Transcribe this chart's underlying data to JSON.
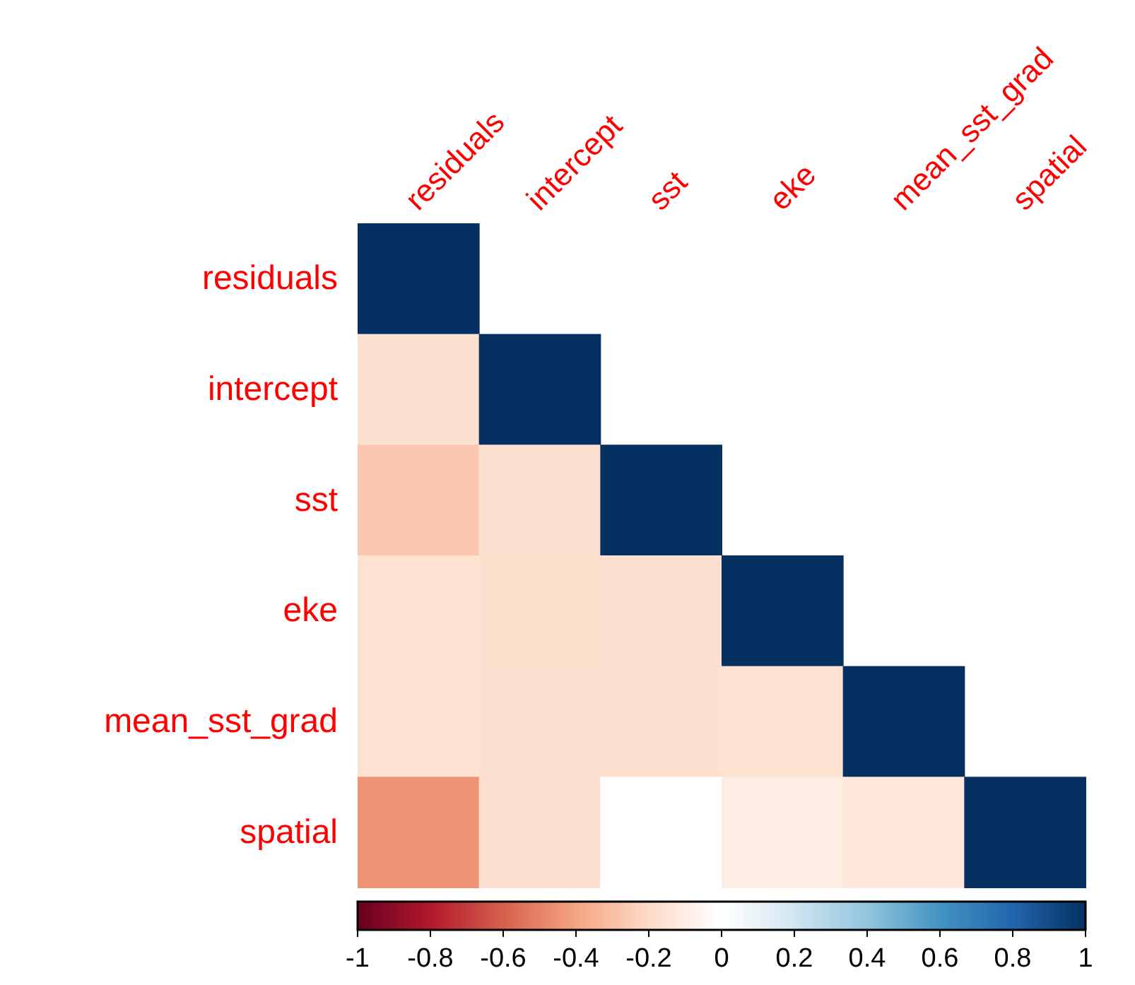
{
  "chart_data": {
    "type": "heatmap",
    "categories": [
      "residuals",
      "intercept",
      "sst",
      "eke",
      "mean_sst_grad",
      "spatial"
    ],
    "y_categories": [
      "residuals",
      "intercept",
      "sst",
      "eke",
      "mean_sst_grad",
      "spatial"
    ],
    "cells": [
      [
        1,
        null,
        null,
        null,
        null,
        null
      ],
      [
        -0.17,
        1,
        null,
        null,
        null,
        null
      ],
      [
        -0.27,
        -0.17,
        1,
        null,
        null,
        null
      ],
      [
        -0.16,
        -0.18,
        -0.17,
        1,
        null,
        null
      ],
      [
        -0.16,
        -0.17,
        -0.17,
        -0.16,
        1,
        null
      ],
      [
        -0.45,
        -0.17,
        0,
        -0.1,
        -0.13,
        1
      ]
    ],
    "clim": [
      -1,
      1
    ],
    "cticks": [
      -1,
      -0.8,
      -0.6,
      -0.4,
      -0.2,
      0,
      0.2,
      0.4,
      0.6,
      0.8,
      1
    ]
  }
}
